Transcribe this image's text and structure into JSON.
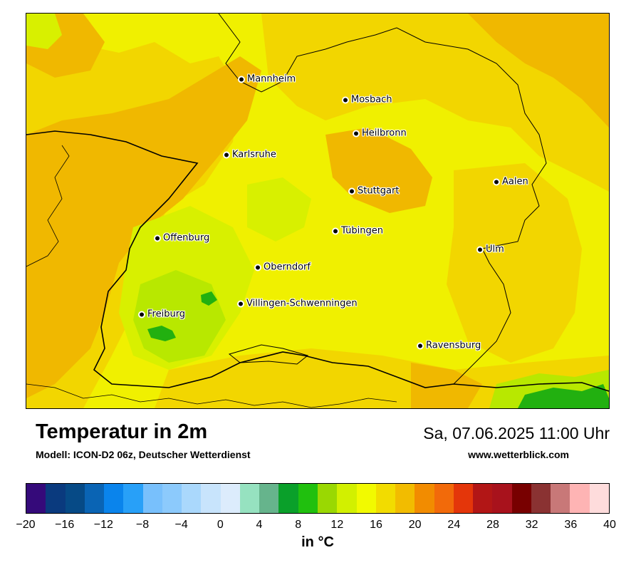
{
  "map": {
    "title": "Temperatur in 2m",
    "subtitle": "Modell: ICON-D2 06z, Deutscher Wetterdienst",
    "datetime": "Sa, 07.06.2025 11:00 Uhr",
    "website": "www.wetterblick.com",
    "unit": "in °C",
    "colors": {
      "base": "#f0f000",
      "warm": "#f2d600",
      "warmer": "#f0b800",
      "cool": "#d8f000",
      "cooler": "#b8e800",
      "green": "#22b010",
      "dark_green": "#14a020"
    },
    "cities": [
      {
        "name": "Mannheim"
      },
      {
        "name": "Mosbach"
      },
      {
        "name": "Heilbronn"
      },
      {
        "name": "Karlsruhe"
      },
      {
        "name": "Aalen"
      },
      {
        "name": "Stuttgart"
      },
      {
        "name": "Offenburg"
      },
      {
        "name": "Tübingen"
      },
      {
        "name": "Ulm"
      },
      {
        "name": "Oberndorf"
      },
      {
        "name": "Villingen-Schwenningen"
      },
      {
        "name": "Freiburg"
      },
      {
        "name": "Ravensburg"
      }
    ]
  },
  "colorbar": {
    "colors": [
      "#350a7a",
      "#0a3a7e",
      "#064a86",
      "#0a64b4",
      "#0a84ec",
      "#28a0f8",
      "#78c0fc",
      "#8ccafc",
      "#aad8fc",
      "#c8e4fc",
      "#dcecfc",
      "#96e2c0",
      "#66b48c",
      "#0aa02a",
      "#20c00e",
      "#9ad802",
      "#d2f000",
      "#f2fa00",
      "#f2dc00",
      "#f2bc00",
      "#f28c00",
      "#f26a0a",
      "#e4360a",
      "#b21616",
      "#a8121c",
      "#780000",
      "#8a3232",
      "#c87878",
      "#feb4b4",
      "#fedcdc"
    ],
    "tick_labels": [
      "−20",
      "−16",
      "−12",
      "−8",
      "−4",
      "0",
      "4",
      "8",
      "12",
      "16",
      "20",
      "24",
      "28",
      "32",
      "36",
      "40"
    ]
  }
}
